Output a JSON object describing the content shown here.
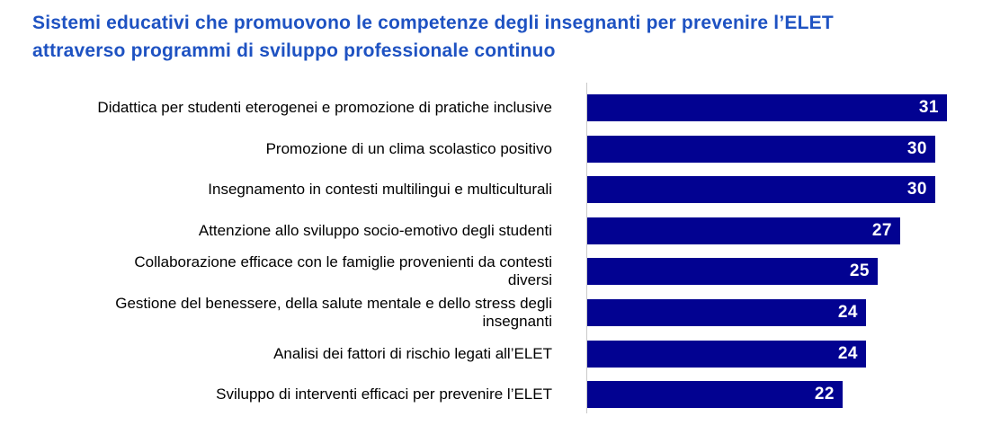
{
  "title": {
    "text": "Sistemi educativi che promuovono le competenze degli insegnanti per prevenire l’ELET\nattraverso programmi di sviluppo professionale continuo",
    "color": "#1e52c2"
  },
  "chart_data": {
    "type": "bar",
    "orientation": "horizontal",
    "title": "Sistemi educativi che promuovono le competenze degli insegnanti per prevenire l’ELET attraverso programmi di sviluppo professionale continuo",
    "categories": [
      "Didattica per studenti eterogenei e promozione di pratiche inclusive",
      "Promozione di un clima scolastico positivo",
      "Insegnamento in contesti multilingui e multiculturali",
      "Attenzione allo sviluppo socio-emotivo degli studenti",
      "Collaborazione efficace con le famiglie provenienti da contesti\ndiversi",
      "Gestione del benessere, della salute mentale e dello stress degli\ninsegnanti",
      "Analisi dei fattori di rischio legati all’ELET",
      "Sviluppo di interventi efficaci per prevenire l’ELET"
    ],
    "values": [
      31,
      30,
      30,
      27,
      25,
      24,
      24,
      22
    ],
    "value_labels": [
      "31",
      "30",
      "30",
      "27",
      "25",
      "24",
      "24",
      "22"
    ],
    "xlabel": "",
    "ylabel": "",
    "xlim": [
      0,
      35.5
    ],
    "grid": false,
    "legend": null,
    "value_labels_position": "inside-end",
    "bar_color": "#020291",
    "value_label_color": "#ffffff",
    "axis_line_color": "#c9c9c9",
    "category_label_color": "#000000"
  }
}
